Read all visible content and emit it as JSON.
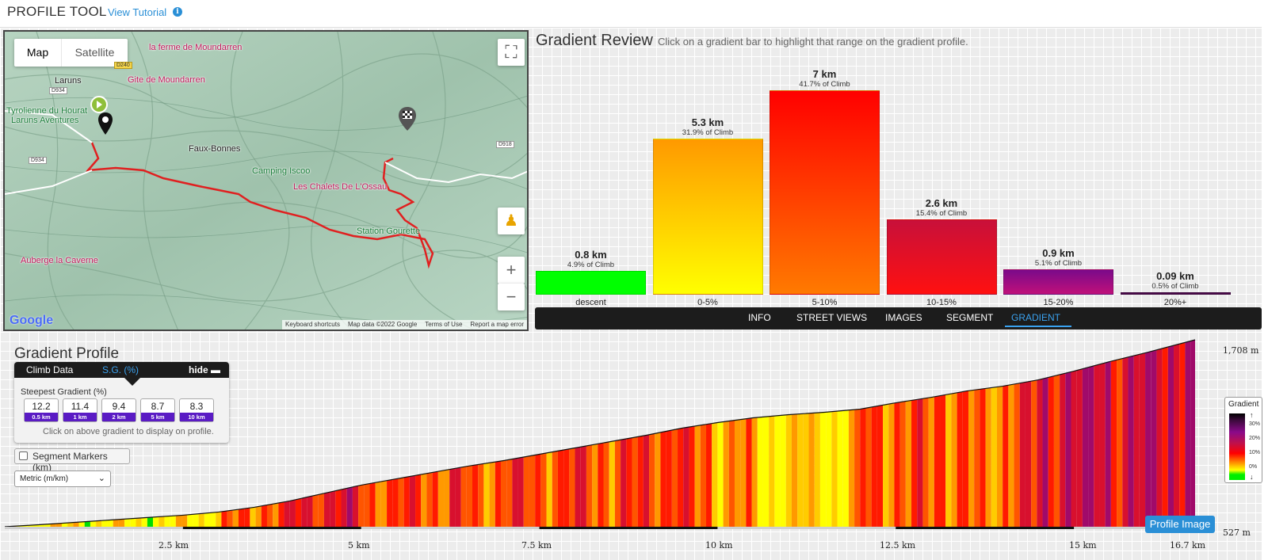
{
  "header": {
    "title": "PROFILE TOOL",
    "tutorial_link": "View Tutorial",
    "info_icon": "info-icon"
  },
  "map": {
    "type_buttons": {
      "map": "Map",
      "satellite": "Satellite"
    },
    "fullscreen_icon": "fullscreen-icon",
    "pegman_icon": "street-view-pegman-icon",
    "zoom_in": "+",
    "zoom_out": "−",
    "labels": {
      "laruns": "Laruns",
      "gite": "Gite de Moundarren",
      "ferme": "la ferme de Moundarren",
      "tyrolienne": "Tyrolienne du Hourat",
      "laruns_aventures": "Laruns Aventures",
      "faux_bonnes": "Faux-Bonnes",
      "camping": "Camping Iscoo",
      "chalets": "Les Chalets De L'Ossau",
      "station": "Station Gourette",
      "auberge": "Auberge la Caverne",
      "road_d934": "D934",
      "road_d934b": "D934",
      "road_d918": "D918",
      "road_d240": "D240"
    },
    "attribution": [
      "Keyboard shortcuts",
      "Map data ©2022 Google",
      "Terms of Use",
      "Report a map error"
    ],
    "google_logo": "Google"
  },
  "review": {
    "title": "Gradient Review",
    "hint": "Click on a gradient bar to highlight that range on the gradient profile.",
    "bars": [
      {
        "category": "descent",
        "distance": "0.8 km",
        "percent": "4.9% of Climb",
        "pct_value": 4.9,
        "color_top": "#00ff00",
        "color_bottom": "#00ff00"
      },
      {
        "category": "0-5%",
        "distance": "5.3 km",
        "percent": "31.9% of Climb",
        "pct_value": 31.9,
        "color_top": "#ff9900",
        "color_bottom": "#ffff00"
      },
      {
        "category": "5-10%",
        "distance": "7 km",
        "percent": "41.7% of Climb",
        "pct_value": 41.7,
        "color_top": "#ff0000",
        "color_bottom": "#ff7a00"
      },
      {
        "category": "10-15%",
        "distance": "2.6 km",
        "percent": "15.4% of Climb",
        "pct_value": 15.4,
        "color_top": "#c8103a",
        "color_bottom": "#ff1010"
      },
      {
        "category": "15-20%",
        "distance": "0.9 km",
        "percent": "5.1% of Climb",
        "pct_value": 5.1,
        "color_top": "#7a0a8a",
        "color_bottom": "#c0107a"
      },
      {
        "category": "20%+",
        "distance": "0.09 km",
        "percent": "0.5% of Climb",
        "pct_value": 0.5,
        "color_top": "#3a0a3a",
        "color_bottom": "#5a0a5a"
      }
    ]
  },
  "tabs": [
    "INFO",
    "STREET VIEWS",
    "IMAGES",
    "SEGMENT",
    "GRADIENT"
  ],
  "active_tab": "GRADIENT",
  "profile": {
    "title": "Gradient Profile",
    "climb_data_tab": "Climb Data",
    "sg_tab": "S.G. (%)",
    "hide_label": "hide",
    "steepest_label": "Steepest Gradient (%)",
    "steepest": [
      {
        "value": "12.2",
        "distance": "0.5 km"
      },
      {
        "value": "11.4",
        "distance": "1 km"
      },
      {
        "value": "9.4",
        "distance": "2 km"
      },
      {
        "value": "8.7",
        "distance": "5 km"
      },
      {
        "value": "8.3",
        "distance": "10 km"
      }
    ],
    "hint": "Click on above gradient to display on profile.",
    "segment_markers": "Segment Markers (km)",
    "units": "Metric (m/km)",
    "elevation_top": "1,708 m",
    "elevation_bottom": "527 m",
    "km_ticks": [
      "2.5 km",
      "5 km",
      "7.5 km",
      "10 km",
      "12.5 km",
      "15 km",
      "16.7 km"
    ],
    "legend": {
      "title": "Gradient",
      "levels": [
        "30%",
        "20%",
        "10%",
        "0%"
      ]
    },
    "profile_image_button": "Profile Image"
  },
  "chart_data": {
    "type": "area",
    "xlabel": "",
    "ylabel": "",
    "x_range_km": [
      0,
      16.7
    ],
    "y_range_m": [
      527,
      1708
    ],
    "x": [
      0,
      0.5,
      1,
      1.5,
      2,
      2.5,
      3,
      3.5,
      4,
      4.5,
      5,
      5.5,
      6,
      6.5,
      7,
      7.5,
      8,
      8.5,
      9,
      9.5,
      10,
      10.5,
      11,
      11.5,
      12,
      12.5,
      13,
      13.5,
      14,
      14.5,
      15,
      15.5,
      16,
      16.7
    ],
    "elevation": [
      527,
      540,
      555,
      570,
      585,
      600,
      620,
      650,
      690,
      740,
      790,
      830,
      870,
      910,
      945,
      985,
      1025,
      1065,
      1105,
      1150,
      1185,
      1215,
      1235,
      1250,
      1270,
      1310,
      1345,
      1385,
      1415,
      1455,
      1510,
      1570,
      1625,
      1708
    ]
  }
}
